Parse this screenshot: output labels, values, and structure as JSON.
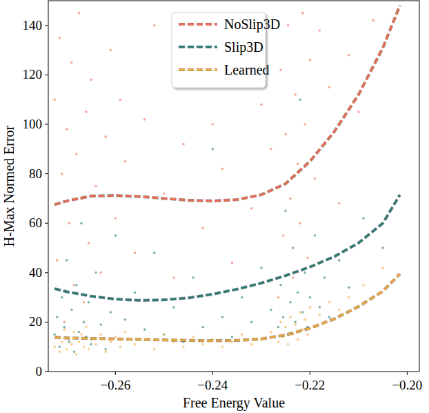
{
  "chart_data": {
    "type": "scatter",
    "x_label": "Free Energy Value",
    "y_label": "H-Max Normed Error",
    "xlim": [
      -0.2738,
      -0.1975
    ],
    "ylim": [
      0,
      150
    ],
    "xticks": [
      {
        "value": -0.26,
        "label": "−0.26"
      },
      {
        "value": -0.24,
        "label": "−0.24"
      },
      {
        "value": -0.22,
        "label": "−0.22"
      },
      {
        "value": -0.2,
        "label": "−0.20"
      }
    ],
    "yticks": [
      0,
      20,
      40,
      60,
      80,
      100,
      120,
      140
    ],
    "grid": false,
    "legend": "upper center",
    "series": [
      {
        "name": "NoSlip3D",
        "color": "#ee6c50",
        "marker": "dot",
        "x": [
          -0.2725,
          -0.272,
          -0.2715,
          -0.271,
          -0.2705,
          -0.27,
          -0.2695,
          -0.269,
          -0.2685,
          -0.268,
          -0.2675,
          -0.267,
          -0.2665,
          -0.266,
          -0.2655,
          -0.265,
          -0.264,
          -0.263,
          -0.262,
          -0.261,
          -0.26,
          -0.259,
          -0.258,
          -0.256,
          -0.254,
          -0.252,
          -0.25,
          -0.248,
          -0.246,
          -0.244,
          -0.242,
          -0.24,
          -0.238,
          -0.236,
          -0.234,
          -0.232,
          -0.23,
          -0.228,
          -0.2265,
          -0.226,
          -0.2255,
          -0.225,
          -0.2245,
          -0.224,
          -0.2235,
          -0.223,
          -0.2225,
          -0.222,
          -0.2215,
          -0.221,
          -0.2205,
          -0.22,
          -0.219,
          -0.218,
          -0.217,
          -0.216,
          -0.214,
          -0.212,
          -0.21,
          -0.207
        ],
        "values": [
          110,
          45,
          135,
          80,
          20,
          98,
          60,
          125,
          35,
          88,
          145,
          70,
          28,
          105,
          52,
          118,
          75,
          40,
          95,
          130,
          62,
          110,
          85,
          48,
          102,
          140,
          72,
          38,
          92,
          120,
          58,
          100,
          82,
          44,
          135,
          66,
          108,
          90,
          30,
          122,
          55,
          96,
          140,
          70,
          38,
          112,
          84,
          60,
          145,
          100,
          46,
          126,
          78,
          138,
          92,
          115,
          68,
          128,
          105,
          142
        ],
        "fit": {
          "line_style": "dashed",
          "x": [
            -0.2725,
            -0.27,
            -0.265,
            -0.26,
            -0.255,
            -0.25,
            -0.245,
            -0.24,
            -0.235,
            -0.23,
            -0.225,
            -0.22,
            -0.215,
            -0.21,
            -0.205,
            -0.2015
          ],
          "values": [
            67.5,
            69,
            71,
            71.2,
            70.8,
            70,
            69.3,
            69,
            69.5,
            71.5,
            76,
            85,
            97,
            112,
            131,
            148
          ]
        }
      },
      {
        "name": "Slip3D",
        "color": "#2a7b74",
        "marker": "dot",
        "x": [
          -0.2725,
          -0.272,
          -0.2715,
          -0.271,
          -0.2705,
          -0.27,
          -0.2695,
          -0.269,
          -0.2685,
          -0.268,
          -0.2675,
          -0.267,
          -0.2665,
          -0.266,
          -0.2655,
          -0.265,
          -0.264,
          -0.263,
          -0.262,
          -0.261,
          -0.26,
          -0.259,
          -0.258,
          -0.256,
          -0.254,
          -0.252,
          -0.25,
          -0.248,
          -0.246,
          -0.244,
          -0.242,
          -0.24,
          -0.238,
          -0.236,
          -0.234,
          -0.232,
          -0.23,
          -0.228,
          -0.2265,
          -0.226,
          -0.2255,
          -0.225,
          -0.2245,
          -0.224,
          -0.2235,
          -0.223,
          -0.2225,
          -0.222,
          -0.2215,
          -0.221,
          -0.2205,
          -0.22,
          -0.219,
          -0.218,
          -0.217,
          -0.216,
          -0.214,
          -0.212,
          -0.209,
          -0.205
        ],
        "values": [
          15,
          22,
          10,
          30,
          18,
          45,
          12,
          25,
          8,
          35,
          16,
          60,
          20,
          14,
          28,
          11,
          40,
          19,
          9,
          24,
          55,
          13,
          21,
          32,
          17,
          48,
          15,
          26,
          12,
          38,
          18,
          90,
          22,
          14,
          30,
          20,
          42,
          25,
          18,
          35,
          22,
          65,
          15,
          28,
          50,
          20,
          32,
          110,
          24,
          40,
          18,
          30,
          55,
          26,
          38,
          22,
          45,
          34,
          62,
          50
        ],
        "fit": {
          "line_style": "dashed",
          "x": [
            -0.2725,
            -0.27,
            -0.265,
            -0.26,
            -0.255,
            -0.25,
            -0.245,
            -0.24,
            -0.235,
            -0.23,
            -0.225,
            -0.22,
            -0.215,
            -0.21,
            -0.205,
            -0.2015
          ],
          "values": [
            33.5,
            32.3,
            30.5,
            29.3,
            28.8,
            29,
            29.8,
            31.3,
            33.3,
            35.8,
            38.8,
            42.3,
            46.5,
            52,
            60,
            71.5
          ]
        }
      },
      {
        "name": "Learned",
        "color": "#f4a93b",
        "marker": "dot",
        "x": [
          -0.2725,
          -0.272,
          -0.2715,
          -0.271,
          -0.2705,
          -0.27,
          -0.2695,
          -0.269,
          -0.2685,
          -0.268,
          -0.2675,
          -0.267,
          -0.2665,
          -0.266,
          -0.2655,
          -0.265,
          -0.264,
          -0.263,
          -0.262,
          -0.261,
          -0.26,
          -0.259,
          -0.258,
          -0.256,
          -0.254,
          -0.252,
          -0.25,
          -0.248,
          -0.246,
          -0.244,
          -0.242,
          -0.24,
          -0.238,
          -0.236,
          -0.234,
          -0.232,
          -0.23,
          -0.228,
          -0.2265,
          -0.226,
          -0.2255,
          -0.225,
          -0.2245,
          -0.224,
          -0.2235,
          -0.223,
          -0.2225,
          -0.222,
          -0.2215,
          -0.221,
          -0.2205,
          -0.22,
          -0.219,
          -0.218,
          -0.217,
          -0.216,
          -0.214,
          -0.212,
          -0.209,
          -0.205
        ],
        "values": [
          10,
          14,
          8,
          12,
          17,
          9,
          13,
          11,
          16,
          7,
          12,
          15,
          10,
          18,
          9,
          13,
          11,
          15,
          8,
          12,
          14,
          10,
          16,
          11,
          13,
          9,
          15,
          12,
          10,
          14,
          11,
          13,
          10,
          12,
          15,
          11,
          13,
          16,
          12,
          20,
          14,
          18,
          11,
          22,
          15,
          19,
          13,
          24,
          17,
          21,
          15,
          26,
          18,
          23,
          20,
          28,
          25,
          30,
          35,
          42
        ],
        "fit": {
          "line_style": "dashed",
          "x": [
            -0.2725,
            -0.27,
            -0.265,
            -0.26,
            -0.255,
            -0.25,
            -0.245,
            -0.24,
            -0.235,
            -0.23,
            -0.225,
            -0.22,
            -0.215,
            -0.21,
            -0.205,
            -0.2015
          ],
          "values": [
            13.8,
            13.6,
            13.4,
            13.2,
            13,
            12.8,
            12.6,
            12.5,
            12.6,
            13.2,
            14.8,
            17.5,
            21.3,
            26.3,
            32.5,
            39.5
          ]
        }
      }
    ]
  }
}
